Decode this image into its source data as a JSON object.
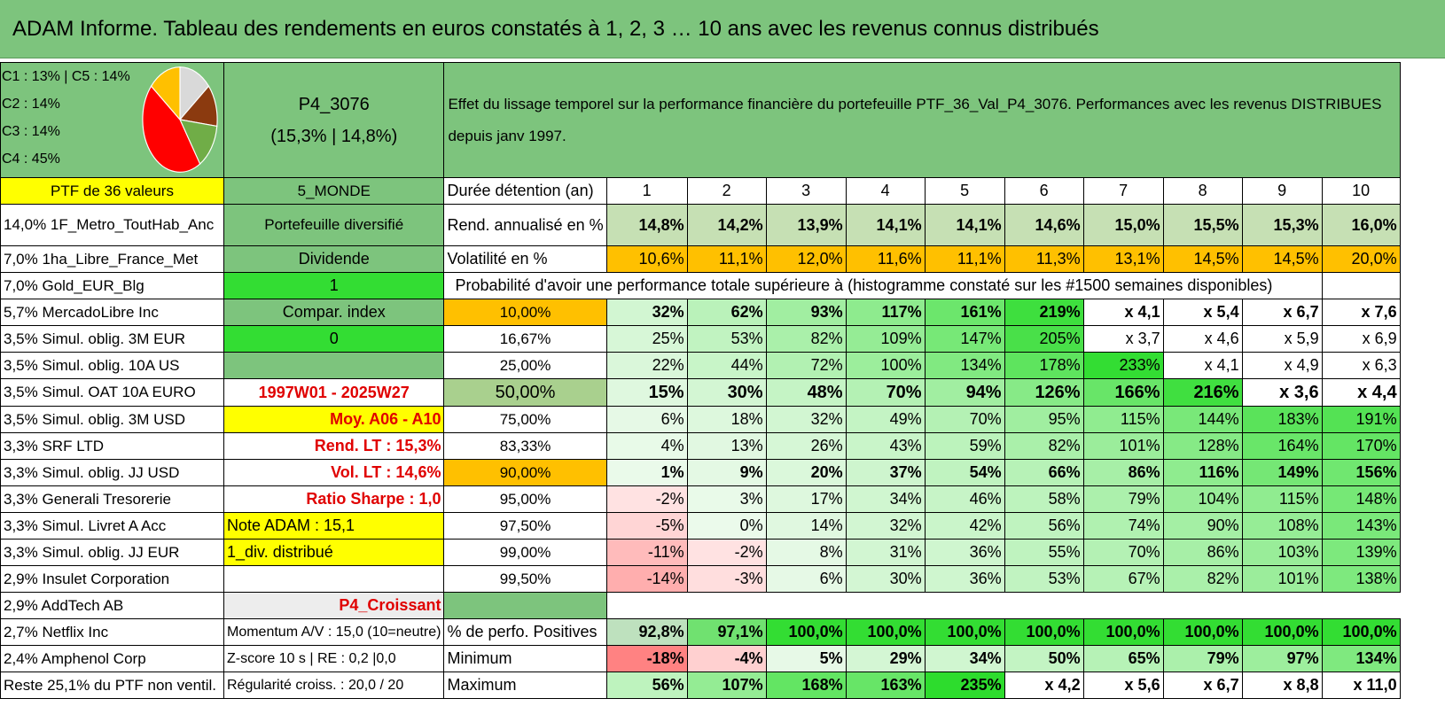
{
  "title": "ADAM Informe. Tableau des rendements en euros constatés à 1, 2, 3 … 10 ans avec les revenus connus distribués",
  "colors": {
    "header_green": "#7dc47d",
    "yellow": "#ffff00",
    "orange": "#ffc000",
    "bright_green": "#33dd33",
    "red_text": "#e00000"
  },
  "pie": {
    "legend": [
      "C1 : 13% | C5 : 14%",
      "C2 : 14%",
      "C3 : 14%",
      "C4 : 45%"
    ],
    "slices": [
      {
        "pct": 14,
        "color": "#d9d9d9"
      },
      {
        "pct": 13,
        "color": "#8b3a0f"
      },
      {
        "pct": 14,
        "color": "#70ad47"
      },
      {
        "pct": 45,
        "color": "#ff0000"
      },
      {
        "pct": 14,
        "color": "#ffc000"
      }
    ]
  },
  "portfolio": {
    "code": "P4_3076",
    "perf": "(15,3% | 14,8%)"
  },
  "description": "Effet du lissage temporel sur la performance financière du portefeuille PTF_36_Val_P4_3076. Performances avec les revenus DISTRIBUES depuis janv 1997.",
  "header_row": {
    "ptf": "PTF de 36 valeurs",
    "zone": "5_MONDE",
    "label": "Durée détention (an)",
    "years": [
      "1",
      "2",
      "3",
      "4",
      "5",
      "6",
      "7",
      "8",
      "9",
      "10"
    ]
  },
  "rend_row": {
    "asset": "14,0% 1F_Metro_ToutHab_Anc",
    "info": "Portefeuille diversifié",
    "label": "Rend. annualisé en %",
    "values": [
      "14,8%",
      "14,2%",
      "13,9%",
      "14,1%",
      "14,1%",
      "14,6%",
      "15,0%",
      "15,5%",
      "15,3%",
      "16,0%"
    ]
  },
  "vol_row": {
    "asset": "7,0% 1ha_Libre_France_Met",
    "info": "Dividende",
    "label": "Volatilité en %",
    "values": [
      "10,6%",
      "11,1%",
      "12,0%",
      "11,6%",
      "11,1%",
      "11,3%",
      "13,1%",
      "14,5%",
      "14,5%",
      "20,0%"
    ]
  },
  "prob_row": {
    "asset": "7,0% Gold_EUR_Blg",
    "info": "1",
    "label": "Probabilité d'avoir une performance totale supérieure à (histogramme constaté sur les #1500 semaines disponibles)"
  },
  "prob_rows": [
    {
      "asset": "5,7% MercadoLibre Inc",
      "info": "Compar. index",
      "prob": "10,00%",
      "values": [
        "32%",
        "62%",
        "93%",
        "117%",
        "161%",
        "219%",
        "x 4,1",
        "x 5,4",
        "x 6,7",
        "x 7,6"
      ]
    },
    {
      "asset": "3,5% Simul. oblig. 3M EUR",
      "info": "0",
      "prob": "16,67%",
      "values": [
        "25%",
        "53%",
        "82%",
        "109%",
        "147%",
        "205%",
        "x 3,7",
        "x 4,6",
        "x 5,9",
        "x 6,9"
      ]
    },
    {
      "asset": "3,5% Simul. oblig. 10A US",
      "info": "",
      "prob": "25,00%",
      "values": [
        "22%",
        "44%",
        "72%",
        "100%",
        "134%",
        "178%",
        "233%",
        "x 4,1",
        "x 4,9",
        "x 6,3"
      ]
    },
    {
      "asset": "3,5% Simul. OAT 10A EURO",
      "info": "1997W01 - 2025W27",
      "prob": "50,00%",
      "values": [
        "15%",
        "30%",
        "48%",
        "70%",
        "94%",
        "126%",
        "166%",
        "216%",
        "x 3,6",
        "x 4,4"
      ]
    },
    {
      "asset": "3,5% Simul. oblig. 3M USD",
      "info": "Moy. A06 - A10",
      "prob": "75,00%",
      "values": [
        "6%",
        "18%",
        "32%",
        "49%",
        "70%",
        "95%",
        "115%",
        "144%",
        "183%",
        "191%"
      ]
    },
    {
      "asset": "3,3% SRF LTD",
      "info": "Rend. LT : 15,3%",
      "prob": "83,33%",
      "values": [
        "4%",
        "13%",
        "26%",
        "43%",
        "59%",
        "82%",
        "101%",
        "128%",
        "164%",
        "170%"
      ]
    },
    {
      "asset": "3,3% Simul. oblig. JJ USD",
      "info": "Vol. LT : 14,6%",
      "prob": "90,00%",
      "values": [
        "1%",
        "9%",
        "20%",
        "37%",
        "54%",
        "66%",
        "86%",
        "116%",
        "149%",
        "156%"
      ]
    },
    {
      "asset": "3,3% Generali Tresorerie",
      "info": "Ratio Sharpe : 1,0",
      "prob": "95,00%",
      "values": [
        "-2%",
        "3%",
        "17%",
        "34%",
        "46%",
        "58%",
        "79%",
        "104%",
        "115%",
        "148%"
      ]
    },
    {
      "asset": "3,3% Simul. Livret A Acc",
      "info": "Note ADAM : 15,1",
      "prob": "97,50%",
      "values": [
        "-5%",
        "0%",
        "14%",
        "32%",
        "42%",
        "56%",
        "74%",
        "90%",
        "108%",
        "143%"
      ]
    },
    {
      "asset": "3,3% Simul. oblig. JJ EUR",
      "info": "1_div. distribué",
      "prob": "99,00%",
      "values": [
        "-11%",
        "-2%",
        "8%",
        "31%",
        "36%",
        "55%",
        "70%",
        "86%",
        "103%",
        "139%"
      ]
    },
    {
      "asset": "2,9% Insulet Corporation",
      "info": "",
      "prob": "99,50%",
      "values": [
        "-14%",
        "-3%",
        "6%",
        "30%",
        "36%",
        "53%",
        "67%",
        "82%",
        "101%",
        "138%"
      ]
    }
  ],
  "spacer_row": {
    "asset": "2,9% AddTech AB",
    "info": "P4_Croissant"
  },
  "stat_rows": [
    {
      "asset": "2,7% Netflix Inc",
      "info": "Momentum A/V : 15,0 (10=neutre)",
      "label": "% de perfo. Positives",
      "values": [
        "92,8%",
        "97,1%",
        "100,0%",
        "100,0%",
        "100,0%",
        "100,0%",
        "100,0%",
        "100,0%",
        "100,0%",
        "100,0%"
      ]
    },
    {
      "asset": "2,4% Amphenol Corp",
      "info": "Z-score 10 s | RE : 0,2 |0,0",
      "label": "Minimum",
      "values": [
        "-18%",
        "-4%",
        "5%",
        "29%",
        "34%",
        "50%",
        "65%",
        "79%",
        "97%",
        "134%"
      ]
    },
    {
      "asset": "Reste 25,1% du PTF non ventil.",
      "info": "Régularité croiss. : 20,0 / 20",
      "label": "Maximum",
      "values": [
        "56%",
        "107%",
        "168%",
        "163%",
        "235%",
        "x 4,2",
        "x 5,6",
        "x 6,7",
        "x 8,8",
        "x 11,0"
      ]
    }
  ]
}
